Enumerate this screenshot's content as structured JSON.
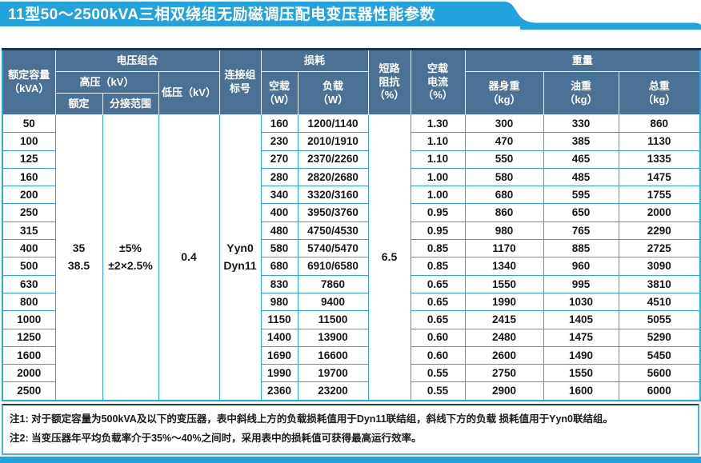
{
  "title": "11型50～2500kVA三相双绕组无励磁调压配电变压器性能参数",
  "colors": {
    "banner_blue": "#22a3de",
    "header_slate": "#4a7296",
    "grid_blue": "#2aa9e0",
    "header_top_border": "#16334f"
  },
  "table": {
    "headers": {
      "capacity": "额定容量\n（kVA）",
      "voltage_group": "电压组合",
      "hv": "高压（kV）",
      "hv_rated": "额定",
      "hv_tap_range": "分接范围",
      "lv": "低压（kV）",
      "connection": "连接组\n标号",
      "loss_group": "损耗",
      "no_load": "空载\n（W）",
      "load": "负载\n（W）",
      "impedance": "短路\n阻抗\n（%）",
      "no_load_current": "空载\n电流\n（%）",
      "weight_group": "重量",
      "body_weight": "器身重\n（kg）",
      "oil_weight": "油重\n（kg）",
      "total_weight": "总重\n（kg）"
    },
    "merged_cells": {
      "hv_rated": "35\n38.5",
      "tap_range": "±5%\n±2×2.5%",
      "lv": "0.4",
      "connection": "Yyn0\nDyn11",
      "impedance": "6.5"
    },
    "rows": [
      {
        "capacity": "50",
        "no_load_w": "160",
        "load_w": "1200/1140",
        "no_load_current": "1.30",
        "body_kg": "300",
        "oil_kg": "330",
        "total_kg": "860"
      },
      {
        "capacity": "100",
        "no_load_w": "230",
        "load_w": "2010/1910",
        "no_load_current": "1.10",
        "body_kg": "470",
        "oil_kg": "385",
        "total_kg": "1130"
      },
      {
        "capacity": "125",
        "no_load_w": "270",
        "load_w": "2370/2260",
        "no_load_current": "1.10",
        "body_kg": "550",
        "oil_kg": "465",
        "total_kg": "1335"
      },
      {
        "capacity": "160",
        "no_load_w": "280",
        "load_w": "2820/2680",
        "no_load_current": "1.00",
        "body_kg": "580",
        "oil_kg": "485",
        "total_kg": "1475"
      },
      {
        "capacity": "200",
        "no_load_w": "340",
        "load_w": "3320/3160",
        "no_load_current": "1.00",
        "body_kg": "680",
        "oil_kg": "595",
        "total_kg": "1755"
      },
      {
        "capacity": "250",
        "no_load_w": "400",
        "load_w": "3950/3760",
        "no_load_current": "0.95",
        "body_kg": "860",
        "oil_kg": "650",
        "total_kg": "2000"
      },
      {
        "capacity": "315",
        "no_load_w": "480",
        "load_w": "4750/4530",
        "no_load_current": "0.95",
        "body_kg": "980",
        "oil_kg": "765",
        "total_kg": "2290"
      },
      {
        "capacity": "400",
        "no_load_w": "580",
        "load_w": "5740/5470",
        "no_load_current": "0.85",
        "body_kg": "1170",
        "oil_kg": "885",
        "total_kg": "2725"
      },
      {
        "capacity": "500",
        "no_load_w": "680",
        "load_w": "6910/6580",
        "no_load_current": "0.85",
        "body_kg": "1340",
        "oil_kg": "960",
        "total_kg": "3090"
      },
      {
        "capacity": "630",
        "no_load_w": "830",
        "load_w": "7860",
        "no_load_current": "0.65",
        "body_kg": "1550",
        "oil_kg": "995",
        "total_kg": "3810"
      },
      {
        "capacity": "800",
        "no_load_w": "980",
        "load_w": "9400",
        "no_load_current": "0.65",
        "body_kg": "1990",
        "oil_kg": "1030",
        "total_kg": "4510"
      },
      {
        "capacity": "1000",
        "no_load_w": "1150",
        "load_w": "11500",
        "no_load_current": "0.65",
        "body_kg": "2415",
        "oil_kg": "1405",
        "total_kg": "5055"
      },
      {
        "capacity": "1250",
        "no_load_w": "1400",
        "load_w": "13900",
        "no_load_current": "0.60",
        "body_kg": "2480",
        "oil_kg": "1475",
        "total_kg": "5290"
      },
      {
        "capacity": "1600",
        "no_load_w": "1690",
        "load_w": "16600",
        "no_load_current": "0.60",
        "body_kg": "2600",
        "oil_kg": "1490",
        "total_kg": "5450"
      },
      {
        "capacity": "2000",
        "no_load_w": "1990",
        "load_w": "19700",
        "no_load_current": "0.55",
        "body_kg": "2750",
        "oil_kg": "1550",
        "total_kg": "5600"
      },
      {
        "capacity": "2500",
        "no_load_w": "2360",
        "load_w": "23200",
        "no_load_current": "0.55",
        "body_kg": "2900",
        "oil_kg": "1600",
        "total_kg": "6000"
      }
    ]
  },
  "notes": [
    "注1: 对于额定容量为500kVA及以下的变压器，表中斜线上方的负载损耗值用于Dyn11联结组，斜线下方的负载 损耗值用于Yyn0联结组。",
    "注2: 当变压器年平均负载率介于35%～40%之间时，采用表中的损耗值可获得最高运行效率。"
  ]
}
